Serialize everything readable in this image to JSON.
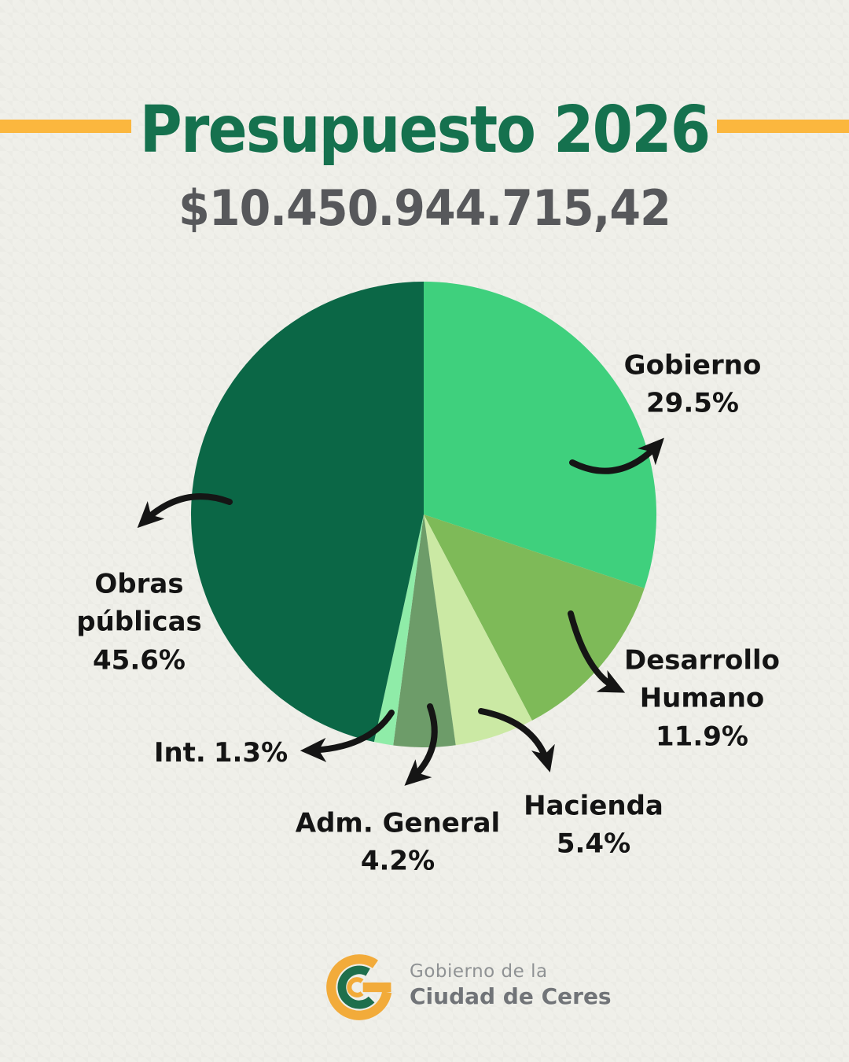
{
  "header": {
    "title": "Presupuesto 2026",
    "title_color": "#15714e",
    "accent_bar_color": "#fbb73e",
    "amount": "$10.450.944.715,42",
    "amount_color": "#57585b"
  },
  "chart_data": {
    "type": "pie",
    "title": "Presupuesto 2026",
    "total_label": "$10.450.944.715,42",
    "start_angle_deg": 0,
    "direction": "clockwise",
    "legend_position": "direct-labels-with-arrows",
    "slices": [
      {
        "label": "Gobierno",
        "pct_label": "29.5%",
        "value": 29.5,
        "color": "#3fd07d"
      },
      {
        "label": "Desarrollo Humano",
        "pct_label": "11.9%",
        "value": 11.9,
        "color": "#7eba58"
      },
      {
        "label": "Hacienda",
        "pct_label": "5.4%",
        "value": 5.4,
        "color": "#cbe9a4"
      },
      {
        "label": "Adm. General",
        "pct_label": "4.2%",
        "value": 4.2,
        "color": "#6d9c69"
      },
      {
        "label": "Int.",
        "pct_label": "1.3%",
        "value": 1.3,
        "color": "#8feca8"
      },
      {
        "label": "Obras públicas",
        "pct_label": "45.6%",
        "value": 45.6,
        "color": "#0b6746"
      }
    ],
    "arrow_color": "#151515",
    "label_text_color": "#141414"
  },
  "footer": {
    "org_line1": "Gobierno de la",
    "org_line2": "Ciudad de Ceres",
    "logo_yellow": "#f2ab3a",
    "logo_green": "#1e6f4c"
  }
}
